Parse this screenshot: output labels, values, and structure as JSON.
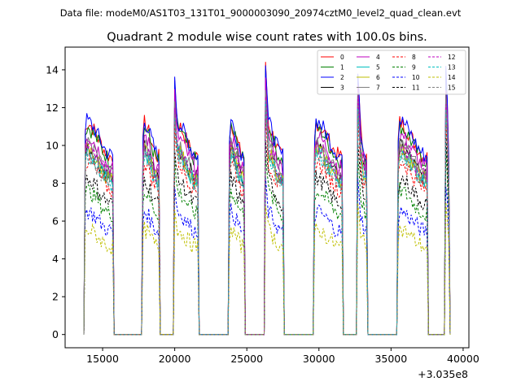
{
  "header": {
    "data_file": "Data file: modeM0/AS1T03_131T01_9000003090_20974cztM0_level2_quad_clean.evt"
  },
  "chart_data": {
    "type": "line",
    "title": "Quadrant 2 module wise count rates with 100.0s bins.",
    "xlabel": "",
    "ylabel": "",
    "x_offset_label": "+3.035e8",
    "xlim": [
      12400,
      40400
    ],
    "ylim": [
      -0.7,
      15.2
    ],
    "xticks": [
      15000,
      20000,
      25000,
      30000,
      35000,
      40000
    ],
    "xtick_labels": [
      "15000",
      "20000",
      "25000",
      "30000",
      "35000",
      "40000"
    ],
    "yticks": [
      0,
      2,
      4,
      6,
      8,
      10,
      12,
      14
    ],
    "ytick_labels": [
      "0",
      "2",
      "4",
      "6",
      "8",
      "10",
      "12",
      "14"
    ],
    "grid": false,
    "legend_position": "top-right",
    "segments": [
      [
        13800,
        15700
      ],
      [
        17800,
        18900
      ],
      [
        20000,
        21600
      ],
      [
        23800,
        24800
      ],
      [
        26300,
        27500
      ],
      [
        29700,
        31600
      ],
      [
        32700,
        33300
      ],
      [
        35500,
        37500
      ],
      [
        38800,
        39000
      ]
    ],
    "segment_spikes": [
      1.05,
      1.0,
      1.32,
      1.0,
      1.38,
      1.0,
      1.35,
      1.0,
      1.35
    ],
    "series": [
      {
        "name": "0",
        "color": "#ff0000",
        "style": "solid",
        "level": 10.3
      },
      {
        "name": "1",
        "color": "#008000",
        "style": "solid",
        "level": 10.1
      },
      {
        "name": "2",
        "color": "#0000ff",
        "style": "solid",
        "level": 10.4
      },
      {
        "name": "3",
        "color": "#000000",
        "style": "solid",
        "level": 9.1
      },
      {
        "name": "4",
        "color": "#bf00bf",
        "style": "solid",
        "level": 9.7
      },
      {
        "name": "5",
        "color": "#00bfbf",
        "style": "solid",
        "level": 8.9
      },
      {
        "name": "6",
        "color": "#bfbf00",
        "style": "solid",
        "level": 9.0
      },
      {
        "name": "7",
        "color": "#808080",
        "style": "solid",
        "level": 9.3
      },
      {
        "name": "8",
        "color": "#ff0000",
        "style": "dashed",
        "level": 8.4
      },
      {
        "name": "9",
        "color": "#008000",
        "style": "dashed",
        "level": 7.0
      },
      {
        "name": "10",
        "color": "#0000ff",
        "style": "dashed",
        "level": 6.0
      },
      {
        "name": "11",
        "color": "#000000",
        "style": "dashed",
        "level": 7.6
      },
      {
        "name": "12",
        "color": "#bf00bf",
        "style": "dashed",
        "level": 9.2
      },
      {
        "name": "13",
        "color": "#00bfbf",
        "style": "dashed",
        "level": 8.8
      },
      {
        "name": "14",
        "color": "#bfbf00",
        "style": "dashed",
        "level": 5.1
      },
      {
        "name": "15",
        "color": "#808080",
        "style": "dashed",
        "level": 8.7
      }
    ]
  }
}
